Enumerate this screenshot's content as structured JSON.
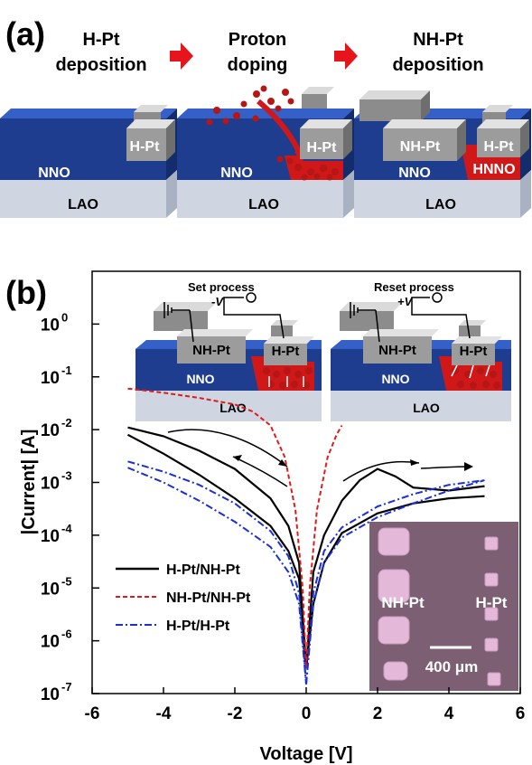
{
  "panel_a": {
    "label": "(a)",
    "steps": [
      {
        "line1": "H-Pt",
        "line2": "deposition"
      },
      {
        "line1": "Proton",
        "line2": "doping"
      },
      {
        "line1": "NH-Pt",
        "line2": "deposition"
      }
    ],
    "films": {
      "substrate": "LAO",
      "film": "NNO",
      "doped": "HNNO",
      "electrode_h": "H-Pt",
      "electrode_nh": "NH-Pt"
    }
  },
  "panel_b": {
    "label": "(b)",
    "insets": [
      {
        "title": "Set process",
        "bias": "-V",
        "electrode_nh": "NH-Pt",
        "electrode_h": "H-Pt",
        "film": "NNO",
        "substrate": "LAO"
      },
      {
        "title": "Reset process",
        "bias": "+V",
        "electrode_nh": "NH-Pt",
        "electrode_h": "H-Pt",
        "film": "NNO",
        "substrate": "LAO"
      }
    ],
    "micrograph": {
      "label_left": "NH-Pt",
      "label_right": "H-Pt",
      "scale_bar": "400 μm"
    }
  },
  "colors": {
    "nno": "#1e3d8f",
    "nno_top": "#2050b8",
    "lao": "#cfd6e2",
    "hnno": "#d11818",
    "electrode": "#9a9a9a",
    "arrow": "#e8141c",
    "micro_bg": "#7d5f74",
    "pad": "#e3b8d9"
  },
  "chart_data": {
    "type": "line",
    "xlabel": "Voltage [V]",
    "ylabel": "|Current| [A]",
    "xlim": [
      -6,
      6
    ],
    "ylim": [
      1e-07,
      10
    ],
    "yscale": "log",
    "xticks": [
      "-6",
      "-4",
      "-2",
      "0",
      "2",
      "4",
      "6"
    ],
    "yticks": [
      {
        "base": "10",
        "exp": "0"
      },
      {
        "base": "10",
        "exp": "-1"
      },
      {
        "base": "10",
        "exp": "-2"
      },
      {
        "base": "10",
        "exp": "-3"
      },
      {
        "base": "10",
        "exp": "-4"
      },
      {
        "base": "10",
        "exp": "-5"
      },
      {
        "base": "10",
        "exp": "-6"
      },
      {
        "base": "10",
        "exp": "-7"
      }
    ],
    "legend_position": "bottom-left",
    "series": [
      {
        "name": "H-Pt/NH-Pt",
        "color": "#000000",
        "style": "solid",
        "branches": [
          {
            "x": [
              -5,
              -4,
              -3,
              -2,
              -1,
              -0.5,
              -0.2,
              0
            ],
            "y": [
              0.011,
              0.0075,
              0.004,
              0.0018,
              0.0005,
              0.00015,
              3e-05,
              3e-07
            ]
          },
          {
            "x": [
              -5,
              -4,
              -3,
              -2,
              -1,
              -0.5,
              -0.2,
              0
            ],
            "y": [
              0.008,
              0.0035,
              0.0014,
              0.0005,
              0.00015,
              5e-05,
              1.5e-05,
              3e-07
            ]
          },
          {
            "x": [
              0,
              0.2,
              0.5,
              1,
              1.5,
              2,
              2.5,
              3,
              4,
              5
            ],
            "y": [
              3e-07,
              2e-05,
              0.0001,
              0.00045,
              0.0011,
              0.0018,
              0.0013,
              0.0008,
              0.0007,
              0.00085
            ]
          },
          {
            "x": [
              0,
              0.2,
              0.5,
              1,
              2,
              3,
              4,
              5
            ],
            "y": [
              3e-07,
              5e-06,
              3e-05,
              0.00011,
              0.00026,
              0.0004,
              0.0005,
              0.00055
            ]
          }
        ]
      },
      {
        "name": "NH-Pt/NH-Pt",
        "color": "#e01b1b",
        "style": "dashed",
        "branches": [
          {
            "x": [
              -5,
              -4,
              -3,
              -2,
              -1.5,
              -1,
              -0.6,
              -0.3,
              -0.1,
              0
            ],
            "y": [
              0.06,
              0.05,
              0.04,
              0.03,
              0.022,
              0.012,
              0.003,
              0.0003,
              1e-05,
              3e-07
            ]
          },
          {
            "x": [
              0,
              0.1,
              0.3,
              0.6,
              0.85,
              1.0
            ],
            "y": [
              3e-07,
              1e-05,
              0.0003,
              0.003,
              0.008,
              0.012
            ]
          }
        ]
      },
      {
        "name": "H-Pt/H-Pt",
        "color": "#1a2fd6",
        "style": "dashdot",
        "branches": [
          {
            "x": [
              -5,
              -4,
              -3,
              -2,
              -1,
              -0.5,
              -0.2,
              0
            ],
            "y": [
              0.0025,
              0.0016,
              0.0009,
              0.0004,
              0.00012,
              4e-05,
              8e-06,
              1.5e-07
            ]
          },
          {
            "x": [
              -5,
              -4,
              -3,
              -2,
              -1,
              -0.5,
              -0.2,
              0
            ],
            "y": [
              0.0019,
              0.001,
              0.00045,
              0.00018,
              6e-05,
              2e-05,
              5e-06,
              1.5e-07
            ]
          },
          {
            "x": [
              0,
              0.2,
              0.5,
              1,
              2,
              3,
              4,
              5
            ],
            "y": [
              1.5e-07,
              5e-06,
              3e-05,
              9e-05,
              0.00022,
              0.0004,
              0.0007,
              0.0011
            ]
          },
          {
            "x": [
              0,
              0.2,
              0.5,
              1,
              2,
              3,
              4,
              5
            ],
            "y": [
              1.5e-07,
              8e-06,
              5e-05,
              0.00014,
              0.00035,
              0.0006,
              0.0009,
              0.0011
            ]
          }
        ]
      }
    ]
  }
}
